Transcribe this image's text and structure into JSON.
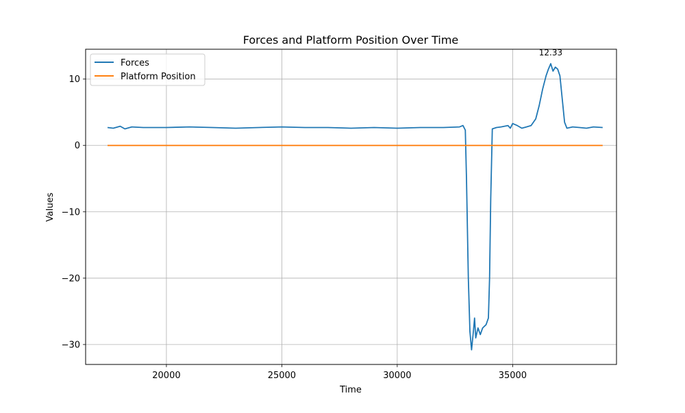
{
  "chart_data": {
    "type": "line",
    "title": "Forces and Platform Position Over Time",
    "xlabel": "Time",
    "ylabel": "Values",
    "xlim": [
      16500,
      39500
    ],
    "ylim": [
      -33,
      14.5
    ],
    "xticks": [
      20000,
      25000,
      30000,
      35000
    ],
    "yticks": [
      10,
      0,
      -10,
      -20,
      -30
    ],
    "xtick_labels": [
      "20000",
      "25000",
      "30000",
      "35000"
    ],
    "ytick_labels": [
      "10",
      "0",
      "−10",
      "−20",
      "−30"
    ],
    "grid": true,
    "legend_position": "upper-left",
    "annotation": {
      "text": "12.33",
      "x": 36650,
      "y": 12.33
    },
    "series": [
      {
        "name": "Forces",
        "color": "#1f77b4",
        "points": [
          [
            17450,
            2.7
          ],
          [
            17700,
            2.6
          ],
          [
            18000,
            2.9
          ],
          [
            18200,
            2.5
          ],
          [
            18500,
            2.8
          ],
          [
            19000,
            2.7
          ],
          [
            20000,
            2.7
          ],
          [
            21000,
            2.8
          ],
          [
            22000,
            2.7
          ],
          [
            23000,
            2.6
          ],
          [
            24000,
            2.7
          ],
          [
            25000,
            2.8
          ],
          [
            26000,
            2.7
          ],
          [
            27000,
            2.7
          ],
          [
            28000,
            2.6
          ],
          [
            29000,
            2.7
          ],
          [
            30000,
            2.6
          ],
          [
            31000,
            2.7
          ],
          [
            32000,
            2.7
          ],
          [
            32700,
            2.8
          ],
          [
            32850,
            3.0
          ],
          [
            32950,
            2.3
          ],
          [
            33000,
            -5
          ],
          [
            33080,
            -20
          ],
          [
            33150,
            -28
          ],
          [
            33220,
            -30.8
          ],
          [
            33300,
            -28
          ],
          [
            33350,
            -26
          ],
          [
            33400,
            -29
          ],
          [
            33500,
            -27.5
          ],
          [
            33600,
            -28.5
          ],
          [
            33700,
            -27.5
          ],
          [
            33850,
            -27
          ],
          [
            33950,
            -26
          ],
          [
            34000,
            -20
          ],
          [
            34050,
            -8
          ],
          [
            34120,
            2.5
          ],
          [
            34300,
            2.7
          ],
          [
            34500,
            2.8
          ],
          [
            34800,
            3.0
          ],
          [
            34900,
            2.6
          ],
          [
            35000,
            3.3
          ],
          [
            35200,
            3.0
          ],
          [
            35400,
            2.6
          ],
          [
            35600,
            2.8
          ],
          [
            35800,
            3.0
          ],
          [
            36000,
            4.0
          ],
          [
            36150,
            6.0
          ],
          [
            36300,
            8.5
          ],
          [
            36450,
            10.5
          ],
          [
            36550,
            11.5
          ],
          [
            36650,
            12.33
          ],
          [
            36750,
            11.2
          ],
          [
            36850,
            11.8
          ],
          [
            36950,
            11.5
          ],
          [
            37050,
            10.5
          ],
          [
            37150,
            7.0
          ],
          [
            37250,
            3.5
          ],
          [
            37350,
            2.6
          ],
          [
            37600,
            2.8
          ],
          [
            37900,
            2.7
          ],
          [
            38200,
            2.6
          ],
          [
            38500,
            2.8
          ],
          [
            38900,
            2.7
          ]
        ]
      },
      {
        "name": "Platform Position",
        "color": "#ff7f0e",
        "points": [
          [
            17450,
            0
          ],
          [
            38900,
            0
          ]
        ]
      }
    ]
  }
}
